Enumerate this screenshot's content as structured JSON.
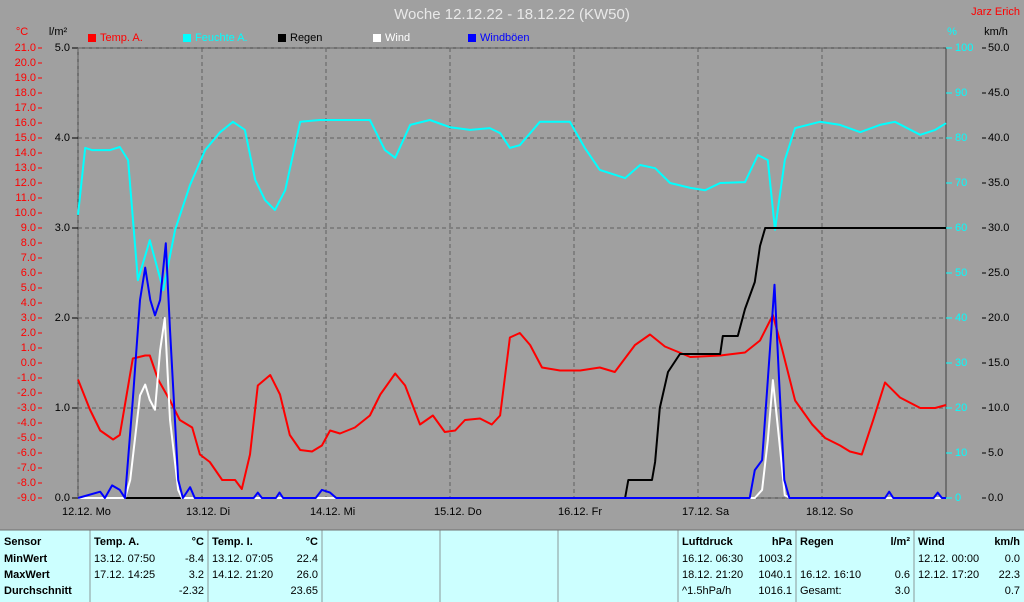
{
  "chart_data": {
    "type": "line",
    "title": "Woche 12.12.22 - 18.12.22 (KW50)",
    "author": "Jarz Erich",
    "xlim": [
      0,
      168
    ],
    "xticks": [
      {
        "value": 0,
        "label": "12.12.  Mo"
      },
      {
        "value": 24,
        "label": "13.12.  Di"
      },
      {
        "value": 48,
        "label": "14.12.  Mi"
      },
      {
        "value": 72,
        "label": "15.12.  Do"
      },
      {
        "value": 96,
        "label": "16.12.  Fr"
      },
      {
        "value": 120,
        "label": "17.12.  Sa"
      },
      {
        "value": 144,
        "label": "18.12.  So"
      }
    ],
    "xgrid": true,
    "axes": [
      {
        "id": "temp",
        "unit": "°C",
        "color": "#ff0000",
        "lim": [
          -9,
          21
        ],
        "grid": false,
        "ticks": [
          {
            "value": -9,
            "label": "-9.0"
          },
          {
            "value": -8,
            "label": "-8.0"
          },
          {
            "value": -7,
            "label": "-7.0"
          },
          {
            "value": -6,
            "label": "-6.0"
          },
          {
            "value": -5,
            "label": "-5.0"
          },
          {
            "value": -4,
            "label": "-4.0"
          },
          {
            "value": -3,
            "label": "-3.0"
          },
          {
            "value": -2,
            "label": "-2.0"
          },
          {
            "value": -1,
            "label": "-1.0"
          },
          {
            "value": 0,
            "label": "0.0"
          },
          {
            "value": 1,
            "label": "1.0"
          },
          {
            "value": 2,
            "label": "2.0"
          },
          {
            "value": 3,
            "label": "3.0"
          },
          {
            "value": 4,
            "label": "4.0"
          },
          {
            "value": 5,
            "label": "5.0"
          },
          {
            "value": 6,
            "label": "6.0"
          },
          {
            "value": 7,
            "label": "7.0"
          },
          {
            "value": 8,
            "label": "8.0"
          },
          {
            "value": 9,
            "label": "9.0"
          },
          {
            "value": 10,
            "label": "10.0"
          },
          {
            "value": 11,
            "label": "11.0"
          },
          {
            "value": 12,
            "label": "12.0"
          },
          {
            "value": 13,
            "label": "13.0"
          },
          {
            "value": 14,
            "label": "14.0"
          },
          {
            "value": 15,
            "label": "15.0"
          },
          {
            "value": 16,
            "label": "16.0"
          },
          {
            "value": 17,
            "label": "17.0"
          },
          {
            "value": 18,
            "label": "18.0"
          },
          {
            "value": 19,
            "label": "19.0"
          },
          {
            "value": 20,
            "label": "20.0"
          },
          {
            "value": 21,
            "label": "21.0"
          }
        ]
      },
      {
        "id": "rain",
        "unit": "l/m²",
        "color": "#000000",
        "lim": [
          0,
          5
        ],
        "grid": true,
        "ticks": [
          {
            "value": 0,
            "label": "0.0"
          },
          {
            "value": 1,
            "label": "1.0"
          },
          {
            "value": 2,
            "label": "2.0"
          },
          {
            "value": 3,
            "label": "3.0"
          },
          {
            "value": 4,
            "label": "4.0"
          },
          {
            "value": 5,
            "label": "5.0"
          }
        ]
      },
      {
        "id": "humidity",
        "unit": "%",
        "color": "#00ffff",
        "lim": [
          0,
          100
        ],
        "grid": false,
        "ticks": [
          0,
          10,
          20,
          30,
          40,
          50,
          60,
          70,
          80,
          90,
          100
        ]
      },
      {
        "id": "wind",
        "unit": "km/h",
        "color": "#000000",
        "lim": [
          0,
          50
        ],
        "grid": false,
        "ticks": [
          {
            "value": 0,
            "label": "0.0"
          },
          {
            "value": 5,
            "label": "5.0"
          },
          {
            "value": 10,
            "label": "10.0"
          },
          {
            "value": 15,
            "label": "15.0"
          },
          {
            "value": 20,
            "label": "20.0"
          },
          {
            "value": 25,
            "label": "25.0"
          },
          {
            "value": 30,
            "label": "30.0"
          },
          {
            "value": 35,
            "label": "35.0"
          },
          {
            "value": 40,
            "label": "40.0"
          },
          {
            "value": 45,
            "label": "45.0"
          },
          {
            "value": 50,
            "label": "50.0"
          }
        ]
      }
    ],
    "series": [
      {
        "name": "Temp. A.",
        "color": "#ff0000",
        "axis": "temp",
        "x": [
          0,
          2.3,
          4.3,
          6.8,
          8.1,
          10.6,
          13,
          13.9,
          15.5,
          17.8,
          19.7,
          22.1,
          23.6,
          25.5,
          27.9,
          30.4,
          31.7,
          33.3,
          34.8,
          37.2,
          39.1,
          41,
          43,
          45.3,
          47.2,
          48.8,
          50.7,
          53.6,
          56.5,
          58.5,
          61.4,
          63.3,
          66.2,
          68.7,
          71,
          73,
          74.9,
          77.8,
          80.1,
          81.7,
          83.6,
          85.5,
          87.5,
          89.8,
          93.3,
          97.2,
          101,
          103.9,
          107.8,
          110.7,
          113.6,
          118.5,
          124.3,
          129.1,
          132,
          134.5,
          136.3,
          138.8,
          142.1,
          144.6,
          147.5,
          149.4,
          151.7,
          153.9,
          156.2,
          159.1,
          163,
          165.9,
          168
        ],
        "values": [
          -1.1,
          -3.1,
          -4.5,
          -5.1,
          -4.8,
          0.3,
          0.5,
          0.5,
          -1.1,
          -2.5,
          -3.8,
          -4.3,
          -6.1,
          -6.6,
          -7.8,
          -7.8,
          -8.4,
          -6.1,
          -1.5,
          -0.8,
          -2.1,
          -4.8,
          -5.8,
          -5.9,
          -5.5,
          -4.5,
          -4.7,
          -4.3,
          -3.5,
          -2.1,
          -0.7,
          -1.5,
          -4.1,
          -3.5,
          -4.6,
          -4.5,
          -3.8,
          -3.7,
          -4.1,
          -3.5,
          1.7,
          2.0,
          1.2,
          -0.3,
          -0.5,
          -0.5,
          -0.3,
          -0.6,
          1.2,
          1.9,
          1.1,
          0.4,
          0.5,
          0.7,
          1.5,
          3.2,
          0.9,
          -2.5,
          -4.1,
          -5.0,
          -5.5,
          -5.9,
          -6.1,
          -3.8,
          -1.3,
          -2.3,
          -3.0,
          -3.0,
          -2.8
        ]
      },
      {
        "name": "Feuchte A.",
        "color": "#00ffff",
        "axis": "humidity",
        "x": [
          0,
          1.4,
          2.7,
          6.2,
          8.1,
          9.7,
          11.6,
          13.9,
          16.5,
          18.8,
          21.7,
          24.6,
          27.5,
          30,
          32.3,
          34.3,
          36.2,
          38.1,
          40.1,
          43,
          46.8,
          51.7,
          56.5,
          59.4,
          61.4,
          64.3,
          68.1,
          72,
          75.9,
          79.7,
          81.7,
          83.6,
          85.5,
          89.4,
          95.2,
          98.1,
          101,
          105.9,
          108.8,
          111.7,
          114.6,
          118.5,
          121.4,
          124.3,
          129.1,
          131.6,
          133.5,
          134.9,
          136.8,
          138.8,
          143.6,
          147.5,
          151.4,
          155.2,
          158.1,
          163,
          165.9,
          168
        ],
        "values": [
          62.9,
          77.8,
          77.3,
          77.3,
          78,
          75.1,
          48.4,
          57.3,
          46.2,
          59.6,
          69.6,
          77.3,
          81.3,
          83.6,
          81.8,
          70.7,
          66.2,
          64,
          68.4,
          83.6,
          84,
          84,
          84,
          77.3,
          75.6,
          82.9,
          84,
          82.4,
          81.8,
          82.2,
          81.1,
          77.8,
          78.4,
          83.6,
          83.6,
          77.8,
          72.9,
          71.1,
          74,
          73.3,
          70,
          68.9,
          68.4,
          70,
          70.2,
          76.2,
          75.1,
          59.6,
          75.1,
          82.2,
          83.6,
          82.9,
          81.3,
          82.9,
          83.6,
          80.7,
          81.8,
          83.3
        ]
      },
      {
        "name": "Regen",
        "color": "#000000",
        "axis": "rain",
        "x": [
          0,
          105.9,
          106.5,
          111.1,
          111.7,
          112.6,
          114.2,
          116.5,
          124.3,
          124.8,
          127.7,
          129.1,
          131,
          132,
          133,
          168
        ],
        "values": [
          0,
          0,
          0.2,
          0.2,
          0.4,
          1.0,
          1.4,
          1.6,
          1.6,
          1.8,
          1.8,
          2.1,
          2.4,
          2.8,
          3.0,
          3.0
        ]
      },
      {
        "name": "Wind",
        "color": "#ffffff",
        "axis": "wind",
        "x": [
          0,
          9.1,
          10.1,
          12,
          13,
          13.9,
          14.9,
          15.9,
          16.8,
          17.8,
          19.4,
          20.1,
          131,
          132.4,
          133.5,
          134.5,
          135.5,
          136.8,
          137.8,
          168
        ],
        "values": [
          0,
          0,
          2,
          11.4,
          12.6,
          10.9,
          9.8,
          16.4,
          20,
          8.7,
          0.9,
          0,
          0,
          0.9,
          6.4,
          13.1,
          7.6,
          0.3,
          0,
          0
        ]
      },
      {
        "name": "Windböen",
        "color": "#0000ff",
        "axis": "wind",
        "x": [
          0,
          4.3,
          5.2,
          6.6,
          8.1,
          9.1,
          10.6,
          12,
          13,
          14,
          14.9,
          15.9,
          17,
          17.8,
          19.4,
          20.3,
          21.7,
          22.6,
          34,
          34.8,
          35.6,
          38.3,
          39,
          39.7,
          46,
          47.2,
          48.8,
          50,
          130,
          131,
          132.4,
          133.5,
          134.8,
          135.7,
          136.7,
          137.7,
          156.2,
          157,
          157.8,
          165.6,
          166.4,
          167.2,
          168
        ],
        "values": [
          0,
          0.7,
          0,
          1.4,
          0.9,
          0,
          10.9,
          22,
          25.6,
          22,
          20.3,
          22,
          28.3,
          18.7,
          2,
          0,
          1.2,
          0,
          0,
          0.6,
          0,
          0,
          0.6,
          0,
          0,
          0.9,
          0.6,
          0,
          0,
          3.1,
          4.2,
          13.1,
          23.7,
          13.1,
          2,
          0,
          0,
          0.7,
          0,
          0,
          0.6,
          0,
          0
        ]
      }
    ]
  },
  "stats_table": {
    "columns": [
      {
        "title": "Sensor"
      },
      {
        "title": "Temp. A.",
        "unit": "°C"
      },
      {
        "title": "Temp. I.",
        "unit": "°C"
      },
      {
        "title": "Luftdruck",
        "unit": "hPa"
      },
      {
        "title": "Regen",
        "unit": "l/m²"
      },
      {
        "title": "Wind",
        "unit": "km/h"
      }
    ],
    "rows": [
      {
        "label": "MinWert",
        "cells": [
          {
            "time": "13.12.  07:50",
            "value": "-8.4"
          },
          {
            "time": "13.12.  07:05",
            "value": "22.4"
          },
          {
            "time": "16.12.  06:30",
            "value": "1003.2"
          },
          null,
          {
            "time": "12.12.  00:00",
            "value": "0.0"
          }
        ]
      },
      {
        "label": "MaxWert",
        "cells": [
          {
            "time": "17.12.  14:25",
            "value": "3.2"
          },
          {
            "time": "14.12.  21:20",
            "value": "26.0"
          },
          {
            "time": "18.12.  21:20",
            "value": "1040.1"
          },
          {
            "time": "16.12.  16:10",
            "value": "0.6"
          },
          {
            "time": "12.12.  17:20",
            "value": "22.3"
          }
        ]
      },
      {
        "label": "Durchschnitt",
        "cells": [
          {
            "value": "-2.32"
          },
          {
            "value": "23.65"
          },
          {
            "time": "^1.5hPa/h",
            "value": "1016.1"
          },
          {
            "time": "Gesamt:",
            "value": "3.0"
          },
          {
            "value": "0.7"
          }
        ]
      }
    ]
  }
}
